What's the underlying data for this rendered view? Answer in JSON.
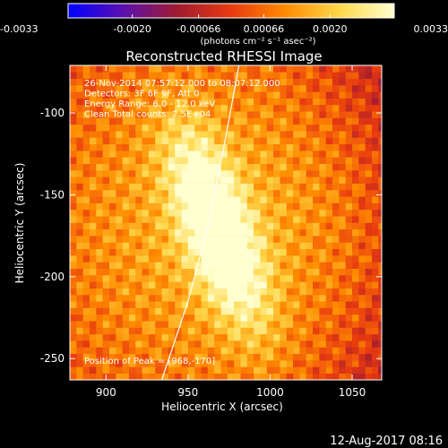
{
  "chart_data": {
    "type": "heatmap",
    "title": "Reconstructed RHESSI Image",
    "xlabel": "Heliocentric X (arcsec)",
    "ylabel": "Heliocentric Y (arcsec)",
    "xlim": [
      878,
      1068
    ],
    "ylim": [
      -263,
      -71
    ],
    "x_ticks": [
      900,
      950,
      1000,
      1050
    ],
    "x_tick_labels": [
      "900",
      "950",
      "1000",
      "1050"
    ],
    "y_ticks": [
      -100,
      -150,
      -200,
      -250
    ],
    "y_tick_labels": [
      "-100",
      "-150",
      "-200",
      "-250"
    ],
    "colorbar": {
      "range": [
        -0.0033,
        0.0033
      ],
      "ticks": [
        -0.0033,
        -0.002,
        -0.00066,
        0.00066,
        0.002,
        0.0033
      ],
      "tick_labels": [
        "-0.0033",
        "-0.0020",
        "-0.00066",
        "0.00066",
        "0.0020",
        "0.0033"
      ],
      "unit_label": "(photons cm⁻² s⁻¹ asec⁻²)",
      "colors": [
        "#0000ff",
        "#5a10b0",
        "#a01a30",
        "#e83a10",
        "#ff8c00",
        "#ffd84a",
        "#ffffd0"
      ]
    },
    "annotations": [
      "26-Nov-2014 07:57:12.000 to 08:07:12.000",
      "Detectors: 3F 6F 9F, Att 0",
      "Energy Range: 6.0 - 12.0 keV",
      "Clean    Total counts: 2.5E+04",
      "Position of Peak = [968,-170]"
    ],
    "peak": {
      "x": 968,
      "y": -170
    },
    "limb_curve": [
      [
        981,
        -71
      ],
      [
        972,
        -120
      ],
      [
        962,
        -170
      ],
      [
        950,
        -215
      ],
      [
        934,
        -263
      ]
    ]
  },
  "footer": {
    "timestamp": "12-Aug-2017 08:16"
  }
}
